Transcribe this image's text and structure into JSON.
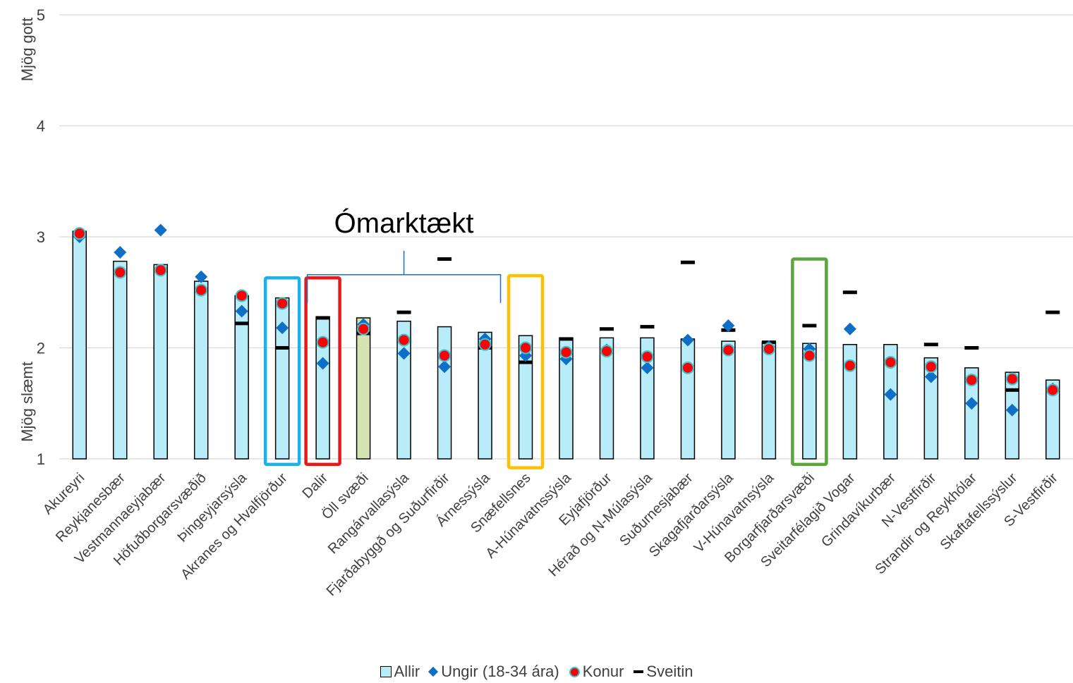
{
  "chart_data": {
    "type": "bar",
    "ylim": [
      1,
      5
    ],
    "yticks": [
      1,
      2,
      3,
      4,
      5
    ],
    "y_top_label": "Mjög gott",
    "y_bottom_label": "Mjög slæmt",
    "grid": true,
    "legend_position": "bottom",
    "categories": [
      "Akureyri",
      "Reykjanesbær",
      "Vestmannaeyjabær",
      "Höfuðborgarsvæðið",
      "Þingeyjarsýsla",
      "Akranes og Hvalfjörður",
      "Dalir",
      "Öll svæði",
      "Rangárvallasýsla",
      "Fjarðabyggð og Suðurfirðir",
      "Árnessýsla",
      "Snæfellsnes",
      "A-Húnavatnssýsla",
      "Eyjafjörður",
      "Hérað og N-Múlasýsla",
      "Suðurnesjabær",
      "Skagafjarðarsýsla",
      "V-Húnavatnsýsla",
      "Borgarfjarðarsvæði",
      "Sveitarfélagið Vogar",
      "Grindavíkurbær",
      "N-Vestfirðir",
      "Strandir og Reykhólar",
      "Skaftafellssýslur",
      "S-Vestfirðir"
    ],
    "highlight_category": "Öll svæði",
    "series": [
      {
        "name": "Allir",
        "kind": "bar",
        "values": [
          3.05,
          2.78,
          2.75,
          2.6,
          2.47,
          2.45,
          2.28,
          2.27,
          2.24,
          2.19,
          2.14,
          2.11,
          2.09,
          2.09,
          2.09,
          2.08,
          2.06,
          2.05,
          2.04,
          2.03,
          2.03,
          1.91,
          1.82,
          1.78,
          1.71
        ]
      },
      {
        "name": "Ungir (18-34 ára)",
        "kind": "diamond",
        "values": [
          3.0,
          2.86,
          3.06,
          2.64,
          2.33,
          2.18,
          1.86,
          2.21,
          1.95,
          1.83,
          2.08,
          1.93,
          1.9,
          1.98,
          1.82,
          2.07,
          2.2,
          2.01,
          1.99,
          2.17,
          1.58,
          1.74,
          1.5,
          1.44,
          1.63
        ]
      },
      {
        "name": "Konur",
        "kind": "circle",
        "values": [
          3.03,
          2.68,
          2.7,
          2.52,
          2.47,
          2.4,
          2.05,
          2.17,
          2.07,
          1.93,
          2.03,
          2.0,
          1.96,
          1.97,
          1.92,
          1.82,
          1.98,
          1.99,
          1.93,
          1.84,
          1.87,
          1.83,
          1.71,
          1.72,
          1.62
        ]
      },
      {
        "name": "Sveitin",
        "kind": "dash",
        "values": [
          null,
          null,
          null,
          null,
          2.22,
          2.0,
          2.27,
          2.13,
          2.32,
          2.8,
          2.0,
          1.87,
          2.08,
          2.17,
          2.19,
          2.77,
          2.16,
          2.05,
          2.2,
          2.5,
          null,
          2.03,
          2.0,
          1.62,
          2.32
        ]
      }
    ],
    "annotations": [
      {
        "type": "bracket",
        "text": "Ómarktækt",
        "from_category": "Dalir",
        "to_category": "Árnessýsla",
        "y": 2.9,
        "color": "#1f6fc1"
      },
      {
        "type": "box",
        "category": "Akranes og Hvalfjörður",
        "from": 0.95,
        "to": 2.63,
        "color": "#1ab2ea"
      },
      {
        "type": "box",
        "category": "Dalir",
        "from": 0.95,
        "to": 2.63,
        "color": "#e81919"
      },
      {
        "type": "box",
        "category": "Snæfellsnes",
        "from": 0.92,
        "to": 2.65,
        "color": "#ffc000"
      },
      {
        "type": "box",
        "category": "Borgarfjarðarsvæði",
        "from": 0.95,
        "to": 2.8,
        "color": "#5ba63c"
      }
    ],
    "colors": {
      "bar": "#b8ecf9",
      "highlight_bar": "#d6e3b2",
      "diamond": "#0f6fc6",
      "circle_fill": "#ff0000",
      "circle_stroke": "#37c6d8",
      "dash": "#000000",
      "grid": "#d9d9d9"
    }
  }
}
